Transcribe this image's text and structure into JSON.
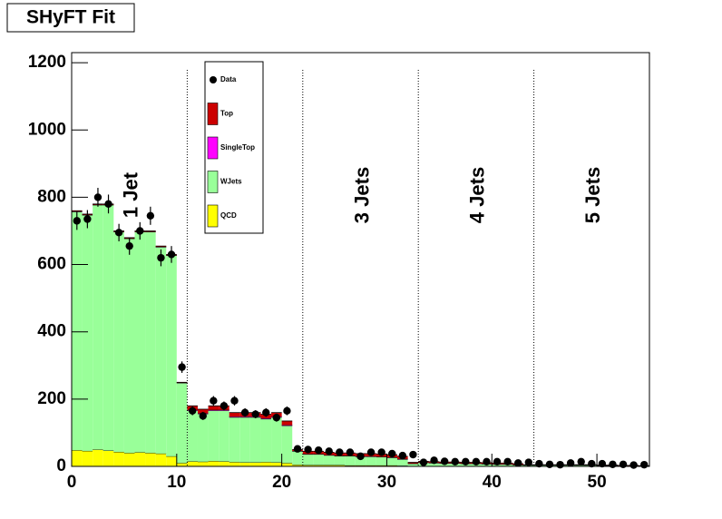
{
  "chart_data": {
    "type": "stacked_histogram",
    "title": "SHyFT Fit",
    "bins": [
      0,
      1,
      2,
      3,
      4,
      5,
      6,
      7,
      8,
      9,
      10,
      11,
      12,
      13,
      14,
      15,
      16,
      17,
      18,
      19,
      20,
      21,
      22,
      23,
      24,
      25,
      26,
      27,
      28,
      29,
      30,
      31,
      32,
      33,
      34,
      35,
      36,
      37,
      38,
      39,
      40,
      41,
      42,
      43,
      44,
      45,
      46,
      47,
      48,
      49,
      50,
      51,
      52,
      53,
      54,
      55
    ],
    "series": [
      {
        "name": "QCD",
        "color": "#ffff00",
        "values": [
          48,
          46,
          50,
          47,
          43,
          40,
          42,
          40,
          38,
          30,
          10,
          15,
          14,
          16,
          15,
          13,
          12,
          12,
          13,
          12,
          10,
          5,
          4,
          4,
          4,
          4,
          3,
          3,
          3,
          3,
          3,
          2,
          1,
          1,
          1,
          1,
          1,
          1,
          1,
          1,
          1,
          1,
          1,
          0.5,
          0.5,
          0.5,
          0.5,
          0.5,
          0.5,
          0.5,
          0.5,
          0.5,
          0.5,
          0.5,
          0.5
        ]
      },
      {
        "name": "WJets",
        "color": "#99ff99",
        "values": [
          709,
          701,
          727,
          730,
          654,
          637,
          655,
          657,
          614,
          597,
          238,
          151,
          142,
          150,
          151,
          133,
          134,
          134,
          128,
          134,
          111,
          40,
          32,
          32,
          29,
          27,
          28,
          26,
          26,
          25,
          23,
          19,
          7,
          10,
          9,
          8,
          8,
          7,
          7,
          6,
          5,
          5,
          3,
          3,
          3,
          3,
          3,
          3,
          3,
          3,
          2,
          2,
          1,
          1,
          0
        ]
      },
      {
        "name": "SingleTop",
        "color": "#ff00ff",
        "values": [
          1,
          1,
          1,
          1,
          1,
          1,
          1,
          1,
          1,
          1,
          1,
          2,
          2,
          2,
          2,
          2,
          2,
          2,
          2,
          2,
          2,
          1,
          1,
          1,
          1,
          1,
          1,
          1,
          1,
          1,
          1,
          1,
          1,
          1,
          1,
          1,
          1,
          1,
          1,
          1,
          1,
          1,
          1,
          0.5,
          0.5,
          0.5,
          0.5,
          0.5,
          0.5,
          0.5,
          0.5,
          0.5,
          0.5,
          0.5,
          0.5
        ]
      },
      {
        "name": "Top",
        "color": "#cc0000",
        "values": [
          2,
          2,
          2,
          2,
          2,
          2,
          2,
          2,
          2,
          2,
          1,
          12,
          12,
          12,
          12,
          12,
          12,
          12,
          12,
          12,
          12,
          4,
          8,
          8,
          8,
          8,
          8,
          8,
          8,
          8,
          8,
          8,
          3,
          3,
          3,
          3,
          3,
          3,
          3,
          3,
          3,
          3,
          3,
          1,
          1,
          1,
          1,
          1,
          1,
          1,
          1,
          1,
          1,
          1,
          1
        ]
      }
    ],
    "data": {
      "name": "Data",
      "color": "#000000",
      "values": [
        730,
        735,
        800,
        780,
        695,
        655,
        700,
        745,
        620,
        630,
        295,
        165,
        150,
        195,
        180,
        195,
        160,
        155,
        160,
        145,
        165,
        52,
        50,
        48,
        45,
        42,
        42,
        30,
        42,
        42,
        38,
        32,
        35,
        12,
        18,
        15,
        14,
        14,
        14,
        14,
        14,
        14,
        10,
        12,
        8,
        6,
        5,
        10,
        14,
        8,
        8,
        6,
        6,
        4,
        5
      ],
      "errors": [
        27,
        27,
        28,
        28,
        26,
        26,
        26,
        27,
        25,
        25,
        17,
        13,
        12,
        14,
        13,
        14,
        13,
        12,
        13,
        12,
        13,
        7,
        7,
        7,
        7,
        6,
        6,
        5,
        6,
        6,
        6,
        6,
        6,
        3,
        4,
        4,
        4,
        4,
        4,
        4,
        4,
        4,
        3,
        3,
        3,
        2,
        2,
        3,
        4,
        3,
        3,
        2,
        2,
        2,
        2
      ]
    },
    "annotations": [
      "1 Jet",
      "3 Jets",
      "4 Jets",
      "5 Jets"
    ],
    "xlim": [
      0,
      55
    ],
    "ylim": [
      0,
      1230
    ],
    "xticks": [
      0,
      10,
      20,
      30,
      40,
      50
    ],
    "yticks": [
      0,
      200,
      400,
      600,
      800,
      1000,
      1200
    ]
  }
}
